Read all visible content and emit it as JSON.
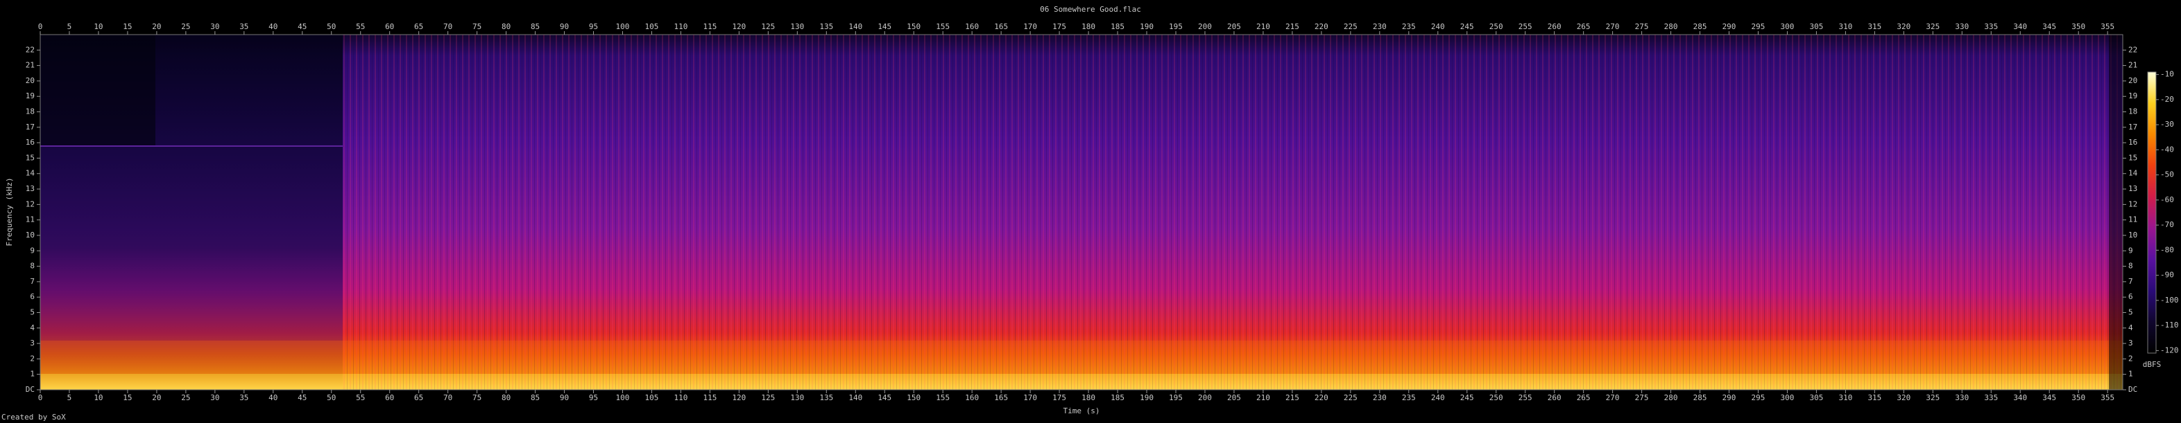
{
  "chart_data": {
    "type": "spectrogram",
    "title": "06 Somewhere Good.flac",
    "xlabel": "Time (s)",
    "ylabel": "Frequency (kHz)",
    "footer": "Created by SoX",
    "xlim": [
      0,
      357.6
    ],
    "xticks": [
      0,
      5,
      10,
      15,
      20,
      25,
      30,
      35,
      40,
      45,
      50,
      55,
      60,
      65,
      70,
      75,
      80,
      85,
      90,
      95,
      100,
      105,
      110,
      115,
      120,
      125,
      130,
      135,
      140,
      145,
      150,
      155,
      160,
      165,
      170,
      175,
      180,
      185,
      190,
      195,
      200,
      205,
      210,
      215,
      220,
      225,
      230,
      235,
      240,
      245,
      250,
      255,
      260,
      265,
      270,
      275,
      280,
      285,
      290,
      295,
      300,
      305,
      310,
      315,
      320,
      325,
      330,
      335,
      340,
      345,
      350,
      355
    ],
    "ylim": [
      0,
      23
    ],
    "yticks": [
      {
        "value": 0,
        "label": "DC"
      },
      1,
      2,
      3,
      4,
      5,
      6,
      7,
      8,
      9,
      10,
      11,
      12,
      13,
      14,
      15,
      16,
      17,
      18,
      19,
      20,
      21,
      22
    ],
    "colorbar": {
      "label": "dBFS",
      "lim": [
        -121,
        -9
      ],
      "ticks": [
        -10,
        -20,
        -30,
        -40,
        -50,
        -60,
        -70,
        -80,
        -90,
        -100,
        -110,
        -120
      ],
      "colors": [
        "#000000",
        "#10062e",
        "#2a0a78",
        "#5a10a0",
        "#9a1590",
        "#d01c4a",
        "#f04010",
        "#f88a00",
        "#fcd020",
        "#ffffd8"
      ]
    }
  }
}
